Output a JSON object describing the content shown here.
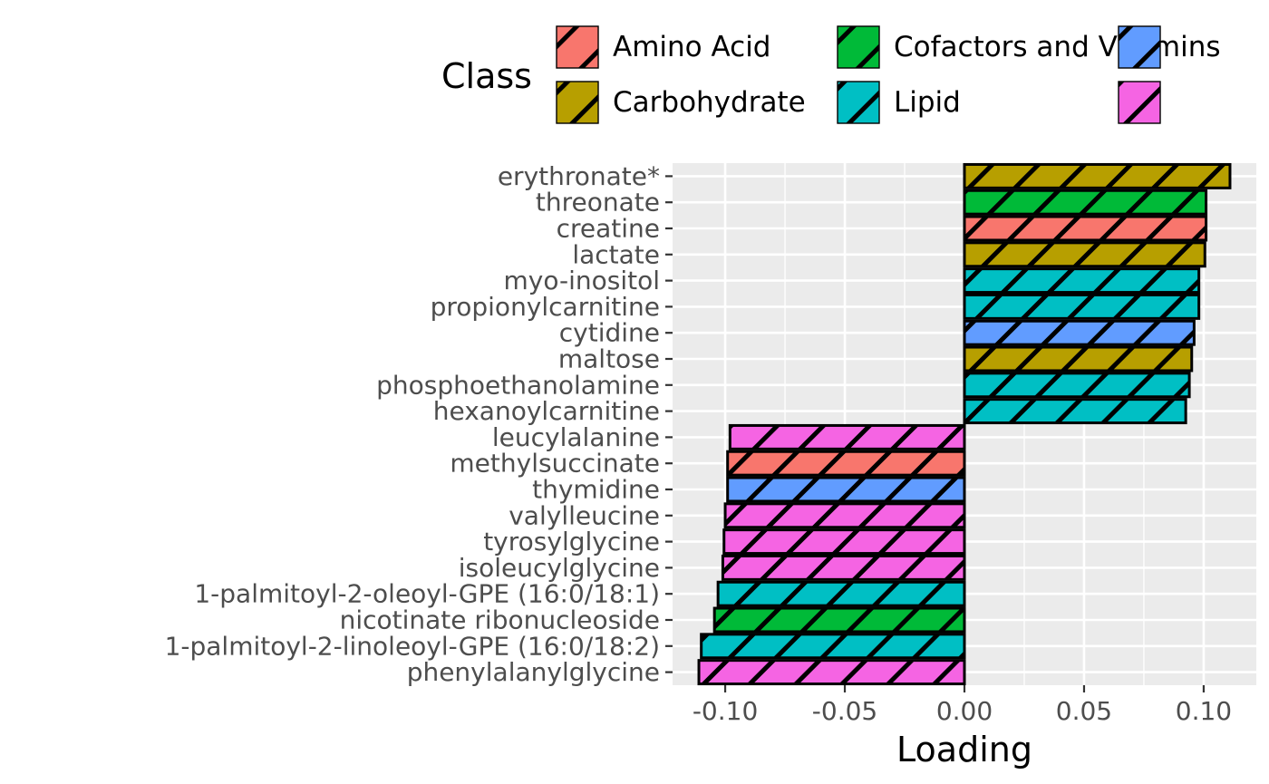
{
  "chart_data": {
    "type": "bar",
    "orientation": "horizontal",
    "xlabel": "Loading",
    "ylabel": "",
    "xlim": [
      -0.122,
      0.122
    ],
    "xticks": [
      -0.1,
      -0.05,
      0.0,
      0.05,
      0.1
    ],
    "xtick_labels": [
      "-0.10",
      "-0.05",
      "0.00",
      "0.05",
      "0.10"
    ],
    "grid": true,
    "fill_pattern": "diagonal-stripes",
    "legend": {
      "title": "Class",
      "position": "top",
      "entries": [
        {
          "label": "Amino Acid",
          "color": "#F8766D"
        },
        {
          "label": "Carbohydrate",
          "color": "#B79F00"
        },
        {
          "label": "Cofactors and Vitamins",
          "color": "#00BA38"
        },
        {
          "label": "Lipid",
          "color": "#00BFC4"
        },
        {
          "label": "",
          "color": "#619CFF"
        },
        {
          "label": "",
          "color": "#F564E3"
        }
      ]
    },
    "categories": [
      "erythronate*",
      "threonate",
      "creatine",
      "lactate",
      "myo-inositol",
      "propionylcarnitine",
      "cytidine",
      "maltose",
      "phosphoethanolamine",
      "hexanoylcarnitine",
      "leucylalanine",
      "methylsuccinate",
      "thymidine",
      "valylleucine",
      "tyrosylglycine",
      "isoleucylglycine",
      "1-palmitoyl-2-oleoyl-GPE (16:0/18:1)",
      "nicotinate ribonucleoside",
      "1-palmitoyl-2-linoleoyl-GPE (16:0/18:2)",
      "phenylalanylglycine"
    ],
    "values": [
      0.111,
      0.101,
      0.101,
      0.1005,
      0.098,
      0.098,
      0.096,
      0.095,
      0.094,
      0.0925,
      -0.098,
      -0.099,
      -0.099,
      -0.1,
      -0.1005,
      -0.101,
      -0.103,
      -0.1045,
      -0.11,
      -0.111
    ],
    "classes": [
      1,
      2,
      0,
      1,
      3,
      3,
      4,
      1,
      3,
      3,
      5,
      0,
      4,
      5,
      5,
      5,
      3,
      2,
      3,
      5
    ]
  }
}
